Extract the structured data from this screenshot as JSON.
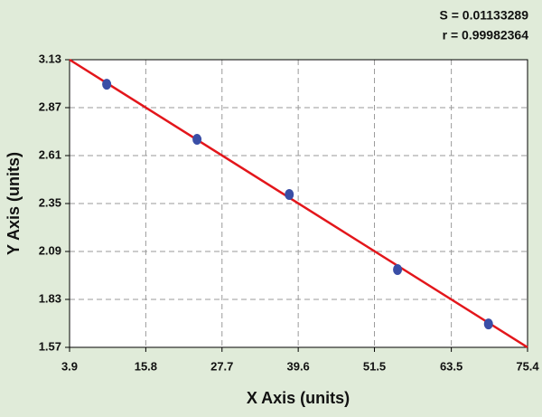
{
  "chart_data": {
    "type": "scatter",
    "annotations": [
      "S = 0.01133289",
      "r = 0.99982364"
    ],
    "x_label": "X Axis (units)",
    "y_label": "Y Axis (units)",
    "points": {
      "x": [
        9.7,
        23.8,
        38.2,
        55.1,
        69.3
      ],
      "y": [
        2.997,
        2.698,
        2.399,
        1.992,
        1.697
      ],
      "color": "#3a4ea6"
    },
    "fit": {
      "x": [
        3.9,
        75.4
      ],
      "y": [
        3.13,
        1.57
      ],
      "color": "#e3161b"
    },
    "xlim": [
      3.9,
      75.4
    ],
    "xticks": [
      3.9,
      15.8,
      27.7,
      39.6,
      51.5,
      63.5,
      75.4
    ],
    "ylim": [
      1.57,
      3.13
    ],
    "yticks": [
      1.57,
      1.83,
      2.09,
      2.35,
      2.61,
      2.87,
      3.13
    ],
    "grid": true
  }
}
